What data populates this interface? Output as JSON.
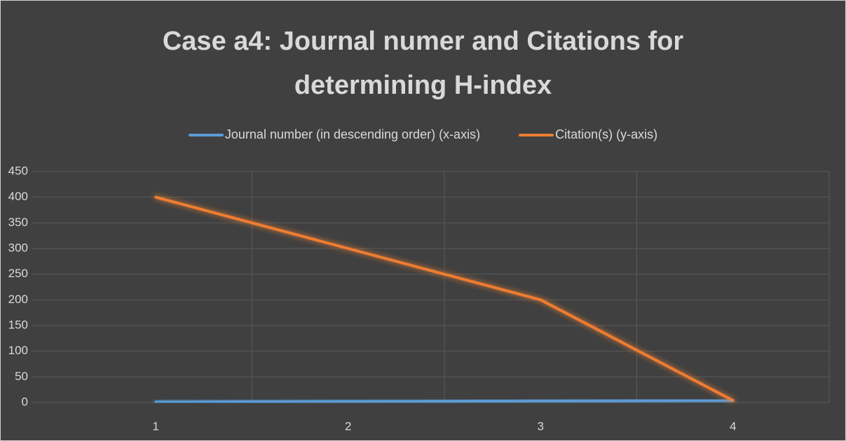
{
  "chart_data": {
    "type": "line",
    "title": "Case a4: Journal numer and Citations for determining H-index",
    "categories": [
      "1",
      "2",
      "3",
      "4"
    ],
    "series": [
      {
        "name": "Journal number (in descending order) (x-axis)",
        "color": "#5b9bd5",
        "values": [
          1,
          2,
          3,
          4
        ]
      },
      {
        "name": "Citation(s) (y-axis)",
        "color": "#ed7d31",
        "values": [
          400,
          300,
          200,
          4
        ]
      }
    ],
    "ylim": [
      0,
      450
    ],
    "yticks": [
      0,
      50,
      100,
      150,
      200,
      250,
      300,
      350,
      400,
      450
    ],
    "grid": true,
    "legend": "top"
  }
}
